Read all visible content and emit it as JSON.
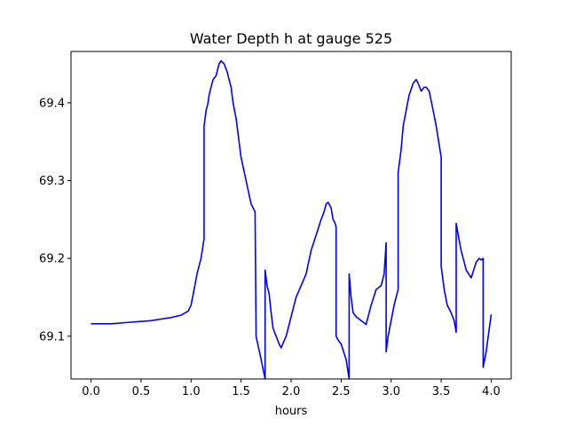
{
  "chart_data": {
    "type": "line",
    "title": "Water Depth h at gauge 525",
    "xlabel": "hours",
    "ylabel": "",
    "xlim": [
      -0.2,
      4.2
    ],
    "ylim": [
      69.045,
      69.466
    ],
    "x_ticks": [
      0.0,
      0.5,
      1.0,
      1.5,
      2.0,
      2.5,
      3.0,
      3.5,
      4.0
    ],
    "x_tick_labels": [
      "0.0",
      "0.5",
      "1.0",
      "1.5",
      "2.0",
      "2.5",
      "3.0",
      "3.5",
      "4.0"
    ],
    "y_ticks": [
      69.1,
      69.2,
      69.3,
      69.4
    ],
    "y_tick_labels": [
      "69.1",
      "69.2",
      "69.3",
      "69.4"
    ],
    "grid": false,
    "line_color": "#0000ff",
    "series": [
      {
        "x": [
          0.0,
          0.2,
          0.4,
          0.6,
          0.7,
          0.8,
          0.9,
          0.97,
          1.0,
          1.03,
          1.06,
          1.1,
          1.13,
          1.13,
          1.14,
          1.15,
          1.16,
          1.17,
          1.18,
          1.2,
          1.22,
          1.25,
          1.28,
          1.3,
          1.33,
          1.36,
          1.38,
          1.4,
          1.42,
          1.45,
          1.5,
          1.55,
          1.6,
          1.64,
          1.65,
          1.65,
          1.7,
          1.74,
          1.74,
          1.75,
          1.76,
          1.78,
          1.8,
          1.82,
          1.85,
          1.88,
          1.9,
          1.95,
          2.0,
          2.05,
          2.1,
          2.15,
          2.2,
          2.25,
          2.3,
          2.33,
          2.35,
          2.37,
          2.4,
          2.42,
          2.44,
          2.45,
          2.45,
          2.47,
          2.5,
          2.55,
          2.58,
          2.58,
          2.6,
          2.62,
          2.65,
          2.7,
          2.75,
          2.8,
          2.85,
          2.9,
          2.93,
          2.95,
          2.95,
          2.97,
          3.0,
          3.03,
          3.07,
          3.07,
          3.08,
          3.1,
          3.12,
          3.15,
          3.18,
          3.22,
          3.25,
          3.27,
          3.3,
          3.33,
          3.35,
          3.38,
          3.42,
          3.45,
          3.5,
          3.5,
          3.53,
          3.56,
          3.6,
          3.63,
          3.65,
          3.65,
          3.67,
          3.7,
          3.72,
          3.75,
          3.8,
          3.85,
          3.88,
          3.9,
          3.92,
          3.92,
          3.95,
          3.97,
          4.0
        ],
        "y": [
          69.116,
          69.116,
          69.118,
          69.12,
          69.122,
          69.124,
          69.127,
          69.132,
          69.14,
          69.16,
          69.18,
          69.2,
          69.225,
          69.37,
          69.38,
          69.39,
          69.395,
          69.4,
          69.41,
          69.42,
          69.43,
          69.435,
          69.45,
          69.454,
          69.45,
          69.44,
          69.43,
          69.42,
          69.4,
          69.38,
          69.33,
          69.3,
          69.27,
          69.26,
          69.11,
          69.1,
          69.07,
          69.045,
          69.185,
          69.175,
          69.165,
          69.155,
          69.13,
          69.11,
          69.1,
          69.09,
          69.085,
          69.1,
          69.125,
          69.15,
          69.165,
          69.18,
          69.21,
          69.23,
          69.25,
          69.26,
          69.27,
          69.272,
          69.265,
          69.25,
          69.245,
          69.24,
          69.1,
          69.095,
          69.09,
          69.07,
          69.045,
          69.18,
          69.15,
          69.13,
          69.125,
          69.12,
          69.115,
          69.14,
          69.16,
          69.165,
          69.18,
          69.22,
          69.08,
          69.1,
          69.12,
          69.14,
          69.16,
          69.31,
          69.32,
          69.34,
          69.37,
          69.39,
          69.41,
          69.425,
          69.43,
          69.425,
          69.415,
          69.42,
          69.42,
          69.415,
          69.39,
          69.37,
          69.33,
          69.19,
          69.16,
          69.14,
          69.13,
          69.12,
          69.105,
          69.245,
          69.23,
          69.21,
          69.2,
          69.185,
          69.175,
          69.195,
          69.2,
          69.198,
          69.2,
          69.06,
          69.08,
          69.1,
          69.128
        ]
      }
    ]
  }
}
